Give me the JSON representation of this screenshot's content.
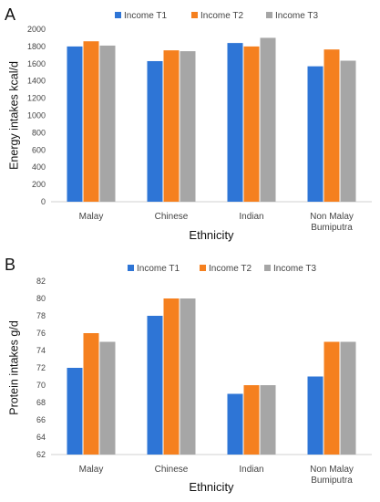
{
  "chart_data": [
    {
      "panel": "A",
      "type": "bar",
      "categories": [
        [
          "Malay"
        ],
        [
          "Chinese"
        ],
        [
          "Indian"
        ],
        [
          "Non Malay",
          "Bumiputra"
        ]
      ],
      "series": [
        {
          "name": "Income T1",
          "color": "#2e75d6",
          "values": [
            1800,
            1630,
            1840,
            1570
          ]
        },
        {
          "name": "Income T2",
          "color": "#f5801f",
          "values": [
            1860,
            1755,
            1800,
            1765
          ]
        },
        {
          "name": "Income T3",
          "color": "#a6a6a6",
          "values": [
            1810,
            1745,
            1900,
            1635
          ]
        }
      ],
      "xlabel": "Ethnicity",
      "ylabel": "Energy intakes kcal/d",
      "ylim": [
        0,
        2000
      ],
      "yticks": [
        0,
        200,
        400,
        600,
        800,
        1000,
        1200,
        1400,
        1600,
        1800,
        2000
      ],
      "legend_position": "top",
      "grid": false
    },
    {
      "panel": "B",
      "type": "bar",
      "categories": [
        [
          "Malay"
        ],
        [
          "Chinese"
        ],
        [
          "Indian"
        ],
        [
          "Non Malay",
          "Bumiputra"
        ]
      ],
      "series": [
        {
          "name": "Income T1",
          "color": "#2e75d6",
          "values": [
            72,
            78,
            69,
            71
          ]
        },
        {
          "name": "Income T2",
          "color": "#f5801f",
          "values": [
            76,
            80,
            70,
            75
          ]
        },
        {
          "name": "Income T3",
          "color": "#a6a6a6",
          "values": [
            75,
            80,
            70,
            75
          ]
        }
      ],
      "xlabel": "Ethnicity",
      "ylabel": "Protein intakes g/d",
      "ylim": [
        62,
        82
      ],
      "yticks": [
        62,
        64,
        66,
        68,
        70,
        72,
        74,
        76,
        78,
        80,
        82
      ],
      "legend_position": "top",
      "grid": false
    }
  ]
}
